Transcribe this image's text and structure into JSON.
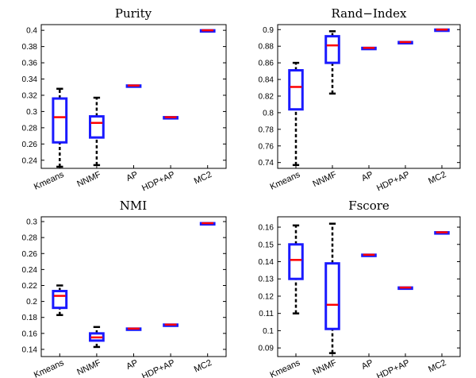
{
  "colors": {
    "box": "#1a1aff",
    "median": "#ff0000",
    "whisker": "#000000",
    "axis": "#000000"
  },
  "chart_data": [
    {
      "type": "box",
      "title": "Purity",
      "categories": [
        "Kmeans",
        "NNMF",
        "AP",
        "HDP+AP",
        "MC2"
      ],
      "yticks": [
        "0.24",
        "0.26",
        "0.28",
        "0.3",
        "0.32",
        "0.34",
        "0.36",
        "0.38",
        "0.4"
      ],
      "ylim": [
        0.23,
        0.407
      ],
      "boxes": [
        {
          "whislo": 0.232,
          "q1": 0.262,
          "med": 0.293,
          "q3": 0.316,
          "whishi": 0.328
        },
        {
          "whislo": 0.234,
          "q1": 0.268,
          "med": 0.286,
          "q3": 0.294,
          "whishi": 0.317
        },
        {
          "whislo": 0.332,
          "q1": 0.332,
          "med": 0.332,
          "q3": 0.332,
          "whishi": 0.332
        },
        {
          "whislo": 0.293,
          "q1": 0.293,
          "med": 0.293,
          "q3": 0.293,
          "whishi": 0.293
        },
        {
          "whislo": 0.4,
          "q1": 0.4,
          "med": 0.4,
          "q3": 0.4,
          "whishi": 0.4
        }
      ]
    },
    {
      "type": "box",
      "title": "Rand−Index",
      "categories": [
        "Kmeans",
        "NNMF",
        "AP",
        "HDP+AP",
        "MC2"
      ],
      "yticks": [
        "0.74",
        "0.76",
        "0.78",
        "0.8",
        "0.82",
        "0.84",
        "0.86",
        "0.88",
        "0.9"
      ],
      "ylim": [
        0.733,
        0.906
      ],
      "boxes": [
        {
          "whislo": 0.737,
          "q1": 0.804,
          "med": 0.831,
          "q3": 0.851,
          "whishi": 0.86
        },
        {
          "whislo": 0.823,
          "q1": 0.86,
          "med": 0.881,
          "q3": 0.892,
          "whishi": 0.898
        },
        {
          "whislo": 0.878,
          "q1": 0.878,
          "med": 0.878,
          "q3": 0.878,
          "whishi": 0.878
        },
        {
          "whislo": 0.885,
          "q1": 0.885,
          "med": 0.885,
          "q3": 0.885,
          "whishi": 0.885
        },
        {
          "whislo": 0.9,
          "q1": 0.9,
          "med": 0.9,
          "q3": 0.9,
          "whishi": 0.9
        }
      ]
    },
    {
      "type": "box",
      "title": "NMI",
      "categories": [
        "Kmeans",
        "NNMF",
        "AP",
        "HDP+AP",
        "MC2"
      ],
      "yticks": [
        "0.14",
        "0.16",
        "0.18",
        "0.2",
        "0.22",
        "0.24",
        "0.26",
        "0.28",
        "0.3"
      ],
      "ylim": [
        0.131,
        0.306
      ],
      "boxes": [
        {
          "whislo": 0.183,
          "q1": 0.192,
          "med": 0.207,
          "q3": 0.213,
          "whishi": 0.22
        },
        {
          "whislo": 0.143,
          "q1": 0.151,
          "med": 0.155,
          "q3": 0.16,
          "whishi": 0.168
        },
        {
          "whislo": 0.166,
          "q1": 0.166,
          "med": 0.166,
          "q3": 0.166,
          "whishi": 0.166
        },
        {
          "whislo": 0.171,
          "q1": 0.171,
          "med": 0.171,
          "q3": 0.171,
          "whishi": 0.171
        },
        {
          "whislo": 0.298,
          "q1": 0.298,
          "med": 0.298,
          "q3": 0.298,
          "whishi": 0.298
        }
      ]
    },
    {
      "type": "box",
      "title": "Fscore",
      "categories": [
        "Kmeans",
        "NNMF",
        "AP",
        "HDP+AP",
        "MC2"
      ],
      "yticks": [
        "0.09",
        "0.1",
        "0.11",
        "0.12",
        "0.13",
        "0.14",
        "0.15",
        "0.16"
      ],
      "ylim": [
        0.085,
        0.166
      ],
      "boxes": [
        {
          "whislo": 0.11,
          "q1": 0.13,
          "med": 0.141,
          "q3": 0.15,
          "whishi": 0.161
        },
        {
          "whislo": 0.087,
          "q1": 0.101,
          "med": 0.115,
          "q3": 0.139,
          "whishi": 0.162
        },
        {
          "whislo": 0.144,
          "q1": 0.144,
          "med": 0.144,
          "q3": 0.144,
          "whishi": 0.144
        },
        {
          "whislo": 0.125,
          "q1": 0.125,
          "med": 0.125,
          "q3": 0.125,
          "whishi": 0.125
        },
        {
          "whislo": 0.157,
          "q1": 0.157,
          "med": 0.157,
          "q3": 0.157,
          "whishi": 0.157
        }
      ]
    }
  ]
}
